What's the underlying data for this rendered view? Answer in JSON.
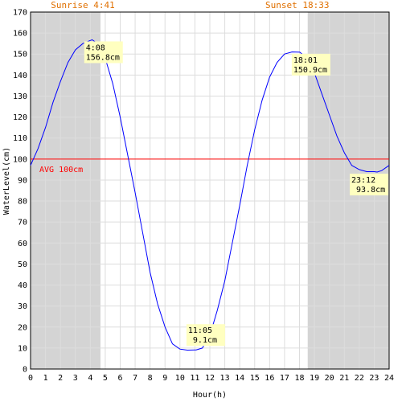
{
  "chart_data": {
    "type": "line",
    "xlabel": "Hour(h)",
    "ylabel": "WaterLevel(cm)",
    "xlim": [
      0,
      24
    ],
    "ylim": [
      0,
      170
    ],
    "x_ticks": [
      0,
      1,
      2,
      3,
      4,
      5,
      6,
      7,
      8,
      9,
      10,
      11,
      12,
      13,
      14,
      15,
      16,
      17,
      18,
      19,
      20,
      21,
      22,
      23,
      24
    ],
    "y_ticks": [
      0,
      10,
      20,
      30,
      40,
      50,
      60,
      70,
      80,
      90,
      100,
      110,
      120,
      130,
      140,
      150,
      160,
      170
    ],
    "grid": true,
    "series": [
      {
        "color": "#0000ff",
        "x": [
          0,
          0.5,
          1,
          1.5,
          2,
          2.5,
          3,
          3.5,
          4,
          4.13,
          4.5,
          5,
          5.5,
          6,
          6.5,
          7,
          7.5,
          8,
          8.5,
          9,
          9.5,
          10,
          10.5,
          11,
          11.08,
          11.5,
          12,
          12.5,
          13,
          13.5,
          14,
          14.5,
          15,
          15.5,
          16,
          16.5,
          17,
          17.5,
          18,
          18.02,
          18.5,
          19,
          19.5,
          20,
          20.5,
          21,
          21.5,
          22,
          22.5,
          23,
          23.2,
          23.5,
          24
        ],
        "y": [
          97,
          105,
          115,
          127,
          137,
          146,
          152,
          155,
          156.5,
          156.8,
          155,
          148,
          136,
          120,
          102,
          84,
          65,
          46,
          31,
          20,
          12,
          9.5,
          9,
          9.1,
          9.1,
          10,
          16,
          28,
          42,
          60,
          78,
          97,
          114,
          128,
          139,
          146,
          150,
          151,
          150.9,
          150.9,
          148,
          141,
          131,
          121,
          111,
          103,
          97,
          95,
          94,
          94,
          93.8,
          94.5,
          97
        ]
      }
    ],
    "average": {
      "value": 100,
      "color": "#ff0000",
      "label": "AVG 100cm"
    },
    "night_bands": [
      {
        "from": 0,
        "to": 4.68
      },
      {
        "from": 18.55,
        "to": 24
      }
    ],
    "sunrise": {
      "hour": 4.68,
      "label": "Sunrise 4:41"
    },
    "sunset": {
      "hour": 18.55,
      "label": "Sunset 18:33"
    },
    "annotations": [
      {
        "x": 4.13,
        "y": 156.8,
        "time": "4:08",
        "level": "156.8cm"
      },
      {
        "x": 11.08,
        "y": 9.1,
        "time": "11:05",
        "level": " 9.1cm"
      },
      {
        "x": 18.02,
        "y": 150.9,
        "time": "18:01",
        "level": "150.9cm"
      },
      {
        "x": 23.2,
        "y": 93.8,
        "time": "23:12",
        "level": " 93.8cm"
      }
    ],
    "colors": {
      "night": "#d4d4d4",
      "grid": "#dddddd",
      "label_box": "#ffffc0",
      "sun_text": "#e07000"
    }
  }
}
